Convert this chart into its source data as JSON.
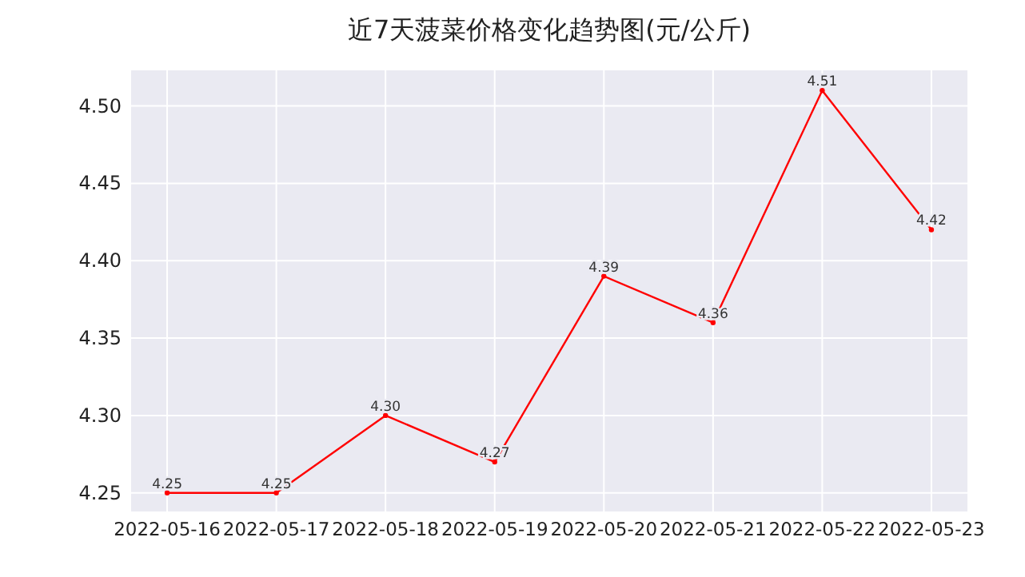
{
  "chart_data": {
    "type": "line",
    "title": "近7天菠菜价格变化趋势图(元/公斤)",
    "categories": [
      "2022-05-16",
      "2022-05-17",
      "2022-05-18",
      "2022-05-19",
      "2022-05-20",
      "2022-05-21",
      "2022-05-22",
      "2022-05-23"
    ],
    "series": [
      {
        "color": "#ff0000",
        "values": [
          4.25,
          4.25,
          4.3,
          4.27,
          4.39,
          4.36,
          4.51,
          4.42
        ],
        "value_labels": [
          "4.25",
          "4.25",
          "4.30",
          "4.27",
          "4.39",
          "4.36",
          "4.51",
          "4.42"
        ]
      }
    ],
    "ylim": [
      4.238,
      4.523
    ],
    "yticks": [
      {
        "value": 4.25,
        "label": "4.25"
      },
      {
        "value": 4.3,
        "label": "4.30"
      },
      {
        "value": 4.35,
        "label": "4.35"
      },
      {
        "value": 4.4,
        "label": "4.40"
      },
      {
        "value": 4.45,
        "label": "4.45"
      },
      {
        "value": 4.5,
        "label": "4.50"
      }
    ],
    "grid": true,
    "marker": "circle"
  }
}
